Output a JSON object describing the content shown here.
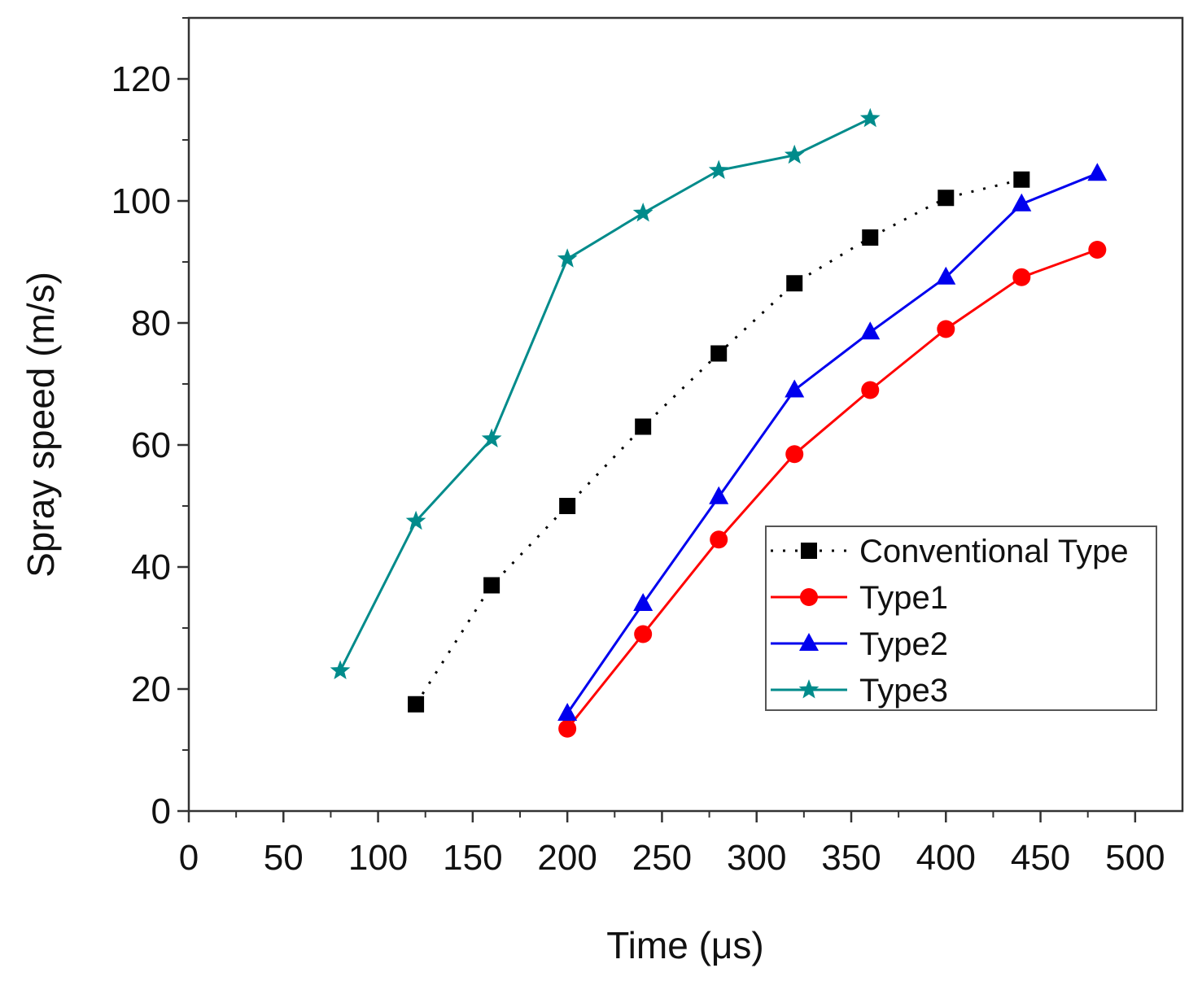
{
  "chart_data": {
    "type": "line",
    "xlabel": "Time (μs)",
    "ylabel": "Spray speed (m/s)",
    "xlim": [
      0,
      525
    ],
    "ylim": [
      0,
      130
    ],
    "xticks": [
      0,
      50,
      100,
      150,
      200,
      250,
      300,
      350,
      400,
      450,
      500
    ],
    "yticks": [
      0,
      20,
      40,
      60,
      80,
      100,
      120
    ],
    "grid": false,
    "legend_position": "right",
    "series": [
      {
        "name": "Conventional Type",
        "color": "#000000",
        "marker": "square",
        "line_style": "dotted",
        "x": [
          120,
          160,
          200,
          240,
          280,
          320,
          360,
          400,
          440
        ],
        "y": [
          17.5,
          37,
          50,
          63,
          75,
          86.5,
          94,
          100.5,
          103.5
        ]
      },
      {
        "name": "Type1",
        "color": "#ff0000",
        "marker": "circle",
        "line_style": "solid",
        "x": [
          200,
          240,
          280,
          320,
          360,
          400,
          440,
          480
        ],
        "y": [
          13.5,
          29,
          44.5,
          58.5,
          69,
          79,
          87.5,
          92
        ]
      },
      {
        "name": "Type2",
        "color": "#0000ee",
        "marker": "triangle",
        "line_style": "solid",
        "x": [
          200,
          240,
          280,
          320,
          360,
          400,
          440,
          480
        ],
        "y": [
          16,
          34,
          51.5,
          69,
          78.5,
          87.5,
          99.5,
          104.5
        ]
      },
      {
        "name": "Type3",
        "color": "#008b8b",
        "marker": "star",
        "line_style": "solid",
        "x": [
          80,
          120,
          160,
          200,
          240,
          280,
          320,
          360
        ],
        "y": [
          23,
          47.5,
          61,
          90.5,
          98,
          105,
          107.5,
          113.5
        ]
      }
    ]
  }
}
